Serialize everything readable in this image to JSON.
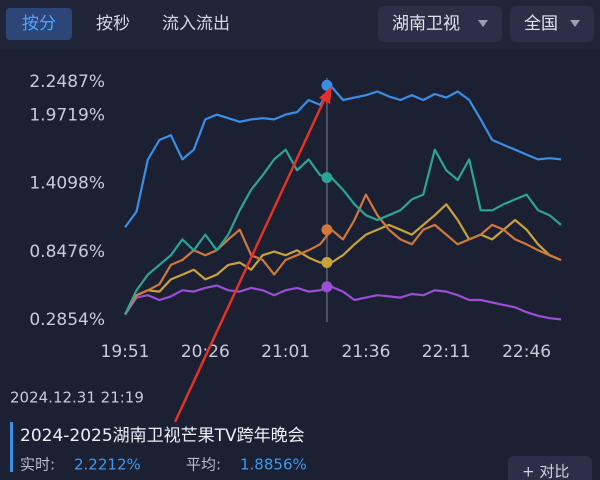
{
  "tabs": {
    "items": [
      "按分",
      "按秒",
      "流入流出"
    ],
    "selected": 0
  },
  "dropdowns": [
    "湖南卫视",
    "全国"
  ],
  "chart_data": {
    "type": "line",
    "x": [
      "19:51",
      "19:56",
      "20:01",
      "20:06",
      "20:11",
      "20:16",
      "20:21",
      "20:26",
      "20:31",
      "20:36",
      "20:41",
      "20:46",
      "20:51",
      "20:56",
      "21:01",
      "21:06",
      "21:11",
      "21:16",
      "21:21",
      "21:26",
      "21:31",
      "21:36",
      "21:41",
      "21:46",
      "21:51",
      "21:56",
      "22:01",
      "22:06",
      "22:11",
      "22:16",
      "22:21",
      "22:26",
      "22:31",
      "22:36",
      "22:41",
      "22:46",
      "22:51",
      "22:56",
      "23:01"
    ],
    "xticks": [
      "19:51",
      "20:26",
      "21:01",
      "21:36",
      "22:11",
      "22:46"
    ],
    "ylim": [
      0.2854,
      2.2487
    ],
    "yticks": [
      {
        "value": 2.2487,
        "label": "2.2487%"
      },
      {
        "value": 1.9719,
        "label": "1.9719%"
      },
      {
        "value": 1.4098,
        "label": "1.4098%"
      },
      {
        "value": 0.8476,
        "label": "0.8476%"
      },
      {
        "value": 0.2854,
        "label": "0.2854%"
      }
    ],
    "series": [
      {
        "color": "#3b8ee6",
        "cursor_value": 2.2212,
        "values": [
          1.05,
          1.18,
          1.61,
          1.77,
          1.81,
          1.61,
          1.69,
          1.94,
          1.98,
          1.95,
          1.92,
          1.94,
          1.95,
          1.94,
          1.98,
          2.0,
          2.1,
          2.06,
          2.21,
          2.1,
          2.12,
          2.14,
          2.17,
          2.13,
          2.1,
          2.14,
          2.1,
          2.15,
          2.12,
          2.17,
          2.1,
          1.94,
          1.77,
          1.73,
          1.69,
          1.65,
          1.61,
          1.62,
          1.61
        ]
      },
      {
        "color": "#2aa597",
        "cursor_value": 1.46,
        "values": [
          0.33,
          0.53,
          0.66,
          0.74,
          0.82,
          0.95,
          0.86,
          0.99,
          0.86,
          0.99,
          1.19,
          1.36,
          1.48,
          1.61,
          1.69,
          1.52,
          1.61,
          1.48,
          1.46,
          1.36,
          1.24,
          1.15,
          1.11,
          1.15,
          1.19,
          1.28,
          1.32,
          1.69,
          1.52,
          1.44,
          1.61,
          1.19,
          1.19,
          1.24,
          1.28,
          1.32,
          1.19,
          1.15,
          1.07
        ]
      },
      {
        "color": "#cf7a3c",
        "cursor_value": 1.03,
        "values": [
          0.33,
          0.49,
          0.53,
          0.58,
          0.74,
          0.78,
          0.86,
          0.82,
          0.86,
          0.95,
          1.03,
          0.82,
          0.78,
          0.66,
          0.78,
          0.82,
          0.86,
          0.91,
          1.03,
          0.95,
          1.11,
          1.32,
          1.15,
          1.03,
          0.95,
          0.91,
          1.03,
          1.07,
          0.99,
          0.91,
          0.95,
          0.99,
          1.07,
          1.03,
          0.95,
          0.91,
          0.86,
          0.82,
          0.78
        ]
      },
      {
        "color": "#c9a23a",
        "cursor_value": 0.76,
        "values": [
          0.33,
          0.49,
          0.53,
          0.52,
          0.62,
          0.66,
          0.7,
          0.62,
          0.66,
          0.74,
          0.76,
          0.7,
          0.82,
          0.85,
          0.82,
          0.86,
          0.8,
          0.76,
          0.76,
          0.82,
          0.91,
          0.99,
          1.03,
          1.07,
          1.03,
          0.99,
          1.07,
          1.15,
          1.24,
          1.11,
          0.95,
          0.99,
          0.95,
          1.03,
          1.11,
          1.03,
          0.91,
          0.82,
          0.78
        ]
      },
      {
        "color": "#9b4fd6",
        "cursor_value": 0.56,
        "values": [
          0.33,
          0.47,
          0.49,
          0.45,
          0.48,
          0.53,
          0.52,
          0.55,
          0.57,
          0.53,
          0.52,
          0.55,
          0.53,
          0.49,
          0.53,
          0.55,
          0.52,
          0.53,
          0.56,
          0.52,
          0.45,
          0.47,
          0.49,
          0.48,
          0.47,
          0.5,
          0.49,
          0.53,
          0.52,
          0.49,
          0.45,
          0.45,
          0.43,
          0.41,
          0.39,
          0.35,
          0.32,
          0.3,
          0.29
        ]
      }
    ]
  },
  "cursor_label": "2024.12.31 21:19",
  "detail": {
    "title": "2024-2025湖南卫视芒果TV跨年晚会",
    "realtime_label": "实时:",
    "realtime_value": "2.2212%",
    "average_label": "平均:",
    "average_value": "1.8856%"
  },
  "compare_button": "+ 对比"
}
